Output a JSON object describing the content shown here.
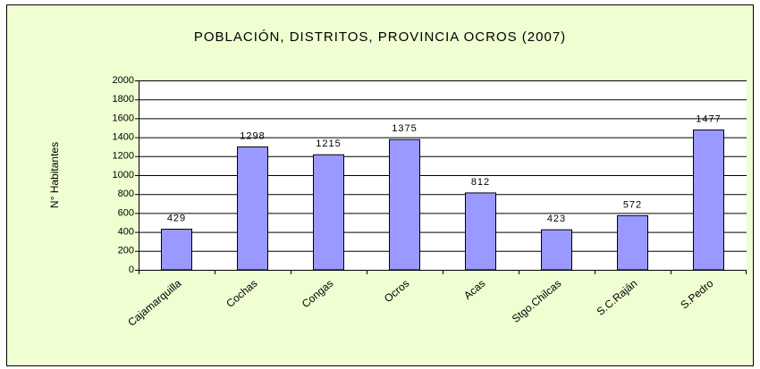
{
  "chart_data": {
    "type": "bar",
    "title": "POBLACIÓN, DISTRITOS, PROVINCIA OCROS (2007)",
    "y_label": "N° Habitantes",
    "categories": [
      "Cajamarquilla",
      "Cochas",
      "Congas",
      "Ocros",
      "Acas",
      "Stgo.Chilcas",
      "S.C.Raján",
      "S.Pedro"
    ],
    "values": [
      429,
      1298,
      1215,
      1375,
      812,
      423,
      572,
      1477
    ],
    "color": "#9999ff",
    "ylim": [
      0,
      2000
    ],
    "yticks": [
      0,
      200,
      400,
      600,
      800,
      1000,
      1200,
      1400,
      1600,
      1800,
      2000
    ],
    "grid": true
  }
}
